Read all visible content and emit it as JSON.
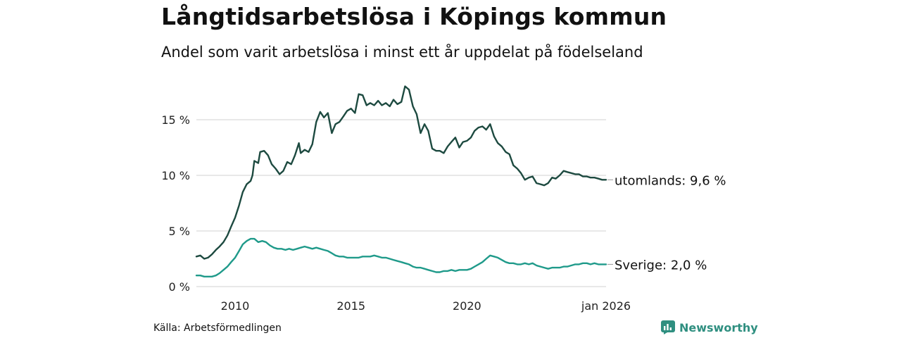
{
  "header": {
    "title": "Långtidsarbetslösa i Köpings kommun",
    "subtitle": "Andel som varit arbetslösa i minst ett år uppdelat på födelseland"
  },
  "footer": {
    "source": "Källa: Arbetsförmedlingen",
    "brand": "Newsworthy",
    "brand_icon": "newsworthy-logo-icon"
  },
  "colors": {
    "foreign": "#1d4a40",
    "sweden": "#1f9a8a",
    "grid": "#d9d9d9",
    "brand": "#2f8f80"
  },
  "chart_data": {
    "type": "line",
    "title": "Långtidsarbetslösa i Köpings kommun",
    "subtitle": "Andel som varit arbetslösa i minst ett år uppdelat på födelseland",
    "xlabel": "",
    "ylabel": "",
    "x_range": [
      2008.33,
      2026.0
    ],
    "ylim": [
      0,
      18.5
    ],
    "y_ticks": [
      0,
      5,
      10,
      15
    ],
    "y_tick_labels": [
      "0 %",
      "5 %",
      "10 %",
      "15 %"
    ],
    "x_ticks": [
      2010,
      2015,
      2020,
      2026.0
    ],
    "x_tick_labels": [
      "2010",
      "2015",
      "2020",
      "jan 2026"
    ],
    "grid": true,
    "series": [
      {
        "name": "utomlands",
        "label": "utomlands: 9,6 %",
        "points": [
          [
            2008.33,
            2.7
          ],
          [
            2008.5,
            2.8
          ],
          [
            2008.67,
            2.5
          ],
          [
            2008.83,
            2.6
          ],
          [
            2009.0,
            2.9
          ],
          [
            2009.17,
            3.3
          ],
          [
            2009.33,
            3.6
          ],
          [
            2009.5,
            4.0
          ],
          [
            2009.67,
            4.6
          ],
          [
            2009.83,
            5.4
          ],
          [
            2010.0,
            6.2
          ],
          [
            2010.17,
            7.3
          ],
          [
            2010.33,
            8.5
          ],
          [
            2010.5,
            9.2
          ],
          [
            2010.67,
            9.5
          ],
          [
            2010.75,
            10.0
          ],
          [
            2010.83,
            11.3
          ],
          [
            2011.0,
            11.1
          ],
          [
            2011.08,
            12.1
          ],
          [
            2011.25,
            12.2
          ],
          [
            2011.42,
            11.8
          ],
          [
            2011.58,
            11.0
          ],
          [
            2011.75,
            10.6
          ],
          [
            2011.92,
            10.1
          ],
          [
            2012.08,
            10.4
          ],
          [
            2012.25,
            11.2
          ],
          [
            2012.42,
            11.0
          ],
          [
            2012.58,
            11.8
          ],
          [
            2012.75,
            12.9
          ],
          [
            2012.83,
            12.0
          ],
          [
            2013.0,
            12.3
          ],
          [
            2013.17,
            12.1
          ],
          [
            2013.33,
            12.8
          ],
          [
            2013.5,
            14.8
          ],
          [
            2013.67,
            15.7
          ],
          [
            2013.83,
            15.2
          ],
          [
            2014.0,
            15.6
          ],
          [
            2014.17,
            13.8
          ],
          [
            2014.33,
            14.6
          ],
          [
            2014.5,
            14.8
          ],
          [
            2014.67,
            15.3
          ],
          [
            2014.83,
            15.8
          ],
          [
            2015.0,
            16.0
          ],
          [
            2015.17,
            15.6
          ],
          [
            2015.33,
            17.3
          ],
          [
            2015.5,
            17.2
          ],
          [
            2015.67,
            16.3
          ],
          [
            2015.83,
            16.5
          ],
          [
            2016.0,
            16.3
          ],
          [
            2016.17,
            16.7
          ],
          [
            2016.33,
            16.3
          ],
          [
            2016.5,
            16.5
          ],
          [
            2016.67,
            16.2
          ],
          [
            2016.83,
            16.8
          ],
          [
            2017.0,
            16.4
          ],
          [
            2017.17,
            16.6
          ],
          [
            2017.33,
            18.0
          ],
          [
            2017.5,
            17.7
          ],
          [
            2017.67,
            16.2
          ],
          [
            2017.83,
            15.5
          ],
          [
            2018.0,
            13.8
          ],
          [
            2018.17,
            14.6
          ],
          [
            2018.33,
            14.0
          ],
          [
            2018.5,
            12.4
          ],
          [
            2018.67,
            12.2
          ],
          [
            2018.83,
            12.2
          ],
          [
            2019.0,
            12.0
          ],
          [
            2019.17,
            12.6
          ],
          [
            2019.33,
            13.0
          ],
          [
            2019.5,
            13.4
          ],
          [
            2019.67,
            12.5
          ],
          [
            2019.83,
            13.0
          ],
          [
            2020.0,
            13.1
          ],
          [
            2020.17,
            13.4
          ],
          [
            2020.33,
            14.0
          ],
          [
            2020.5,
            14.3
          ],
          [
            2020.67,
            14.4
          ],
          [
            2020.83,
            14.1
          ],
          [
            2021.0,
            14.6
          ],
          [
            2021.17,
            13.5
          ],
          [
            2021.33,
            12.9
          ],
          [
            2021.5,
            12.6
          ],
          [
            2021.67,
            12.1
          ],
          [
            2021.83,
            11.9
          ],
          [
            2022.0,
            10.9
          ],
          [
            2022.17,
            10.6
          ],
          [
            2022.33,
            10.2
          ],
          [
            2022.5,
            9.6
          ],
          [
            2022.67,
            9.8
          ],
          [
            2022.83,
            9.9
          ],
          [
            2023.0,
            9.3
          ],
          [
            2023.17,
            9.2
          ],
          [
            2023.33,
            9.1
          ],
          [
            2023.5,
            9.3
          ],
          [
            2023.67,
            9.8
          ],
          [
            2023.83,
            9.7
          ],
          [
            2024.0,
            10.0
          ],
          [
            2024.17,
            10.4
          ],
          [
            2024.33,
            10.3
          ],
          [
            2024.5,
            10.2
          ],
          [
            2024.67,
            10.1
          ],
          [
            2024.83,
            10.1
          ],
          [
            2025.0,
            9.9
          ],
          [
            2025.17,
            9.9
          ],
          [
            2025.33,
            9.8
          ],
          [
            2025.5,
            9.8
          ],
          [
            2025.67,
            9.7
          ],
          [
            2025.83,
            9.6
          ],
          [
            2026.0,
            9.6
          ]
        ]
      },
      {
        "name": "Sverige",
        "label": "Sverige: 2,0 %",
        "points": [
          [
            2008.33,
            1.0
          ],
          [
            2008.5,
            1.0
          ],
          [
            2008.67,
            0.9
          ],
          [
            2008.83,
            0.9
          ],
          [
            2009.0,
            0.9
          ],
          [
            2009.17,
            1.0
          ],
          [
            2009.33,
            1.2
          ],
          [
            2009.5,
            1.5
          ],
          [
            2009.67,
            1.8
          ],
          [
            2009.83,
            2.2
          ],
          [
            2010.0,
            2.6
          ],
          [
            2010.17,
            3.2
          ],
          [
            2010.33,
            3.8
          ],
          [
            2010.5,
            4.1
          ],
          [
            2010.67,
            4.3
          ],
          [
            2010.83,
            4.3
          ],
          [
            2011.0,
            4.0
          ],
          [
            2011.17,
            4.1
          ],
          [
            2011.33,
            4.0
          ],
          [
            2011.5,
            3.7
          ],
          [
            2011.67,
            3.5
          ],
          [
            2011.83,
            3.4
          ],
          [
            2012.0,
            3.4
          ],
          [
            2012.17,
            3.3
          ],
          [
            2012.33,
            3.4
          ],
          [
            2012.5,
            3.3
          ],
          [
            2012.67,
            3.4
          ],
          [
            2012.83,
            3.5
          ],
          [
            2013.0,
            3.6
          ],
          [
            2013.17,
            3.5
          ],
          [
            2013.33,
            3.4
          ],
          [
            2013.5,
            3.5
          ],
          [
            2013.67,
            3.4
          ],
          [
            2013.83,
            3.3
          ],
          [
            2014.0,
            3.2
          ],
          [
            2014.17,
            3.0
          ],
          [
            2014.33,
            2.8
          ],
          [
            2014.5,
            2.7
          ],
          [
            2014.67,
            2.7
          ],
          [
            2014.83,
            2.6
          ],
          [
            2015.0,
            2.6
          ],
          [
            2015.17,
            2.6
          ],
          [
            2015.33,
            2.6
          ],
          [
            2015.5,
            2.7
          ],
          [
            2015.67,
            2.7
          ],
          [
            2015.83,
            2.7
          ],
          [
            2016.0,
            2.8
          ],
          [
            2016.17,
            2.7
          ],
          [
            2016.33,
            2.6
          ],
          [
            2016.5,
            2.6
          ],
          [
            2016.67,
            2.5
          ],
          [
            2016.83,
            2.4
          ],
          [
            2017.0,
            2.3
          ],
          [
            2017.17,
            2.2
          ],
          [
            2017.33,
            2.1
          ],
          [
            2017.5,
            2.0
          ],
          [
            2017.67,
            1.8
          ],
          [
            2017.83,
            1.7
          ],
          [
            2018.0,
            1.7
          ],
          [
            2018.17,
            1.6
          ],
          [
            2018.33,
            1.5
          ],
          [
            2018.5,
            1.4
          ],
          [
            2018.67,
            1.3
          ],
          [
            2018.83,
            1.3
          ],
          [
            2019.0,
            1.4
          ],
          [
            2019.17,
            1.4
          ],
          [
            2019.33,
            1.5
          ],
          [
            2019.5,
            1.4
          ],
          [
            2019.67,
            1.5
          ],
          [
            2019.83,
            1.5
          ],
          [
            2020.0,
            1.5
          ],
          [
            2020.17,
            1.6
          ],
          [
            2020.33,
            1.8
          ],
          [
            2020.5,
            2.0
          ],
          [
            2020.67,
            2.2
          ],
          [
            2020.83,
            2.5
          ],
          [
            2021.0,
            2.8
          ],
          [
            2021.17,
            2.7
          ],
          [
            2021.33,
            2.6
          ],
          [
            2021.5,
            2.4
          ],
          [
            2021.67,
            2.2
          ],
          [
            2021.83,
            2.1
          ],
          [
            2022.0,
            2.1
          ],
          [
            2022.17,
            2.0
          ],
          [
            2022.33,
            2.0
          ],
          [
            2022.5,
            2.1
          ],
          [
            2022.67,
            2.0
          ],
          [
            2022.83,
            2.1
          ],
          [
            2023.0,
            1.9
          ],
          [
            2023.17,
            1.8
          ],
          [
            2023.33,
            1.7
          ],
          [
            2023.5,
            1.6
          ],
          [
            2023.67,
            1.7
          ],
          [
            2023.83,
            1.7
          ],
          [
            2024.0,
            1.7
          ],
          [
            2024.17,
            1.8
          ],
          [
            2024.33,
            1.8
          ],
          [
            2024.5,
            1.9
          ],
          [
            2024.67,
            2.0
          ],
          [
            2024.83,
            2.0
          ],
          [
            2025.0,
            2.1
          ],
          [
            2025.17,
            2.1
          ],
          [
            2025.33,
            2.0
          ],
          [
            2025.5,
            2.1
          ],
          [
            2025.67,
            2.0
          ],
          [
            2025.83,
            2.0
          ],
          [
            2026.0,
            2.0
          ]
        ]
      }
    ]
  }
}
